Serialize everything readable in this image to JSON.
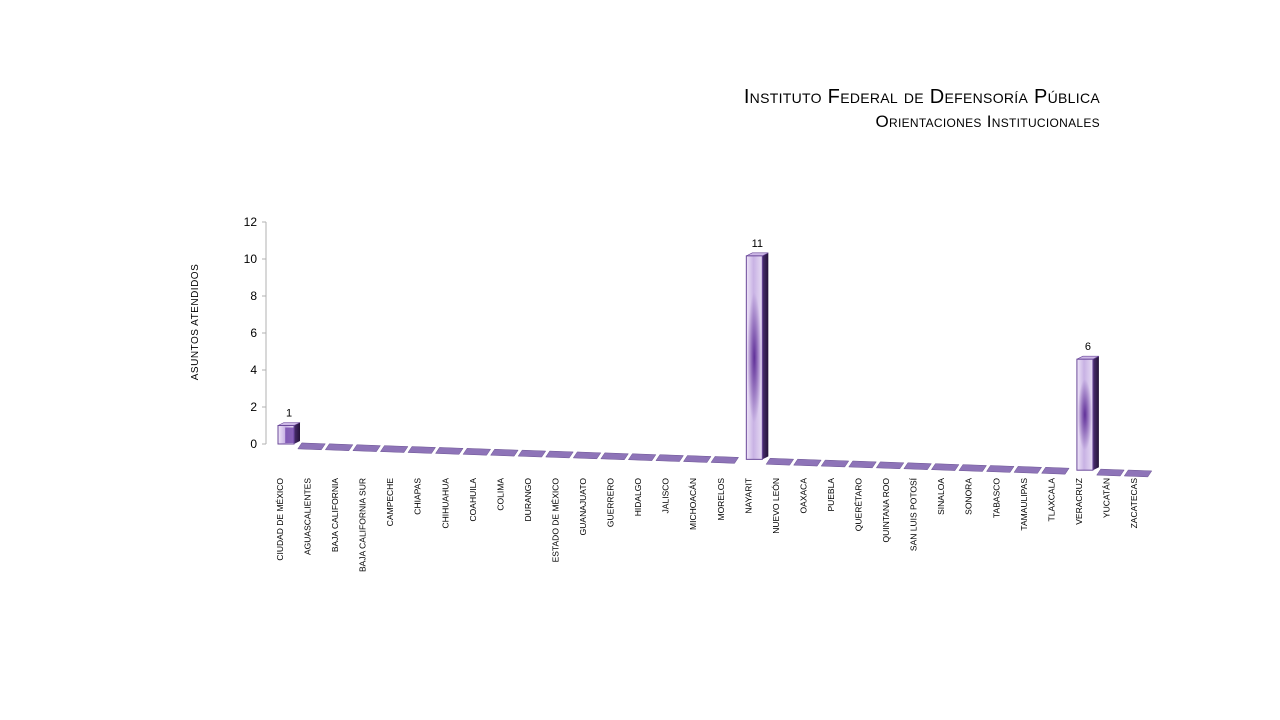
{
  "chart_data": {
    "type": "bar",
    "title": "Instituto Federal de Defensoría Pública",
    "subtitle": "Orientaciones Institucionales",
    "xlabel": "",
    "ylabel": "ASUNTOS ATENDIDOS",
    "ylim": [
      0,
      12
    ],
    "yticks": [
      "0",
      "2",
      "4",
      "6",
      "8",
      "10",
      "12"
    ],
    "grid": false,
    "categories": [
      "CIUDAD DE MÉXICO",
      "AGUASCALIENTES",
      "BAJA CALIFORNIA",
      "BAJA CALIFORNIA SUR",
      "CAMPECHE",
      "CHIAPAS",
      "CHIHUAHUA",
      "COAHUILA",
      "COLIMA",
      "DURANGO",
      "ESTADO DE MÉXICO",
      "GUANAJUATO",
      "GUERRERO",
      "HIDALGO",
      "JALISCO",
      "MICHOACÁN",
      "MORELOS",
      "NAYARIT",
      "NUEVO LEÓN",
      "OAXACA",
      "PUEBLA",
      "QUERÉTARO",
      "QUINTANA ROO",
      "SAN LUIS POTOSÍ",
      "SINALOA",
      "SONORA",
      "TABASCO",
      "TAMAULIPAS",
      "TLAXCALA",
      "VERACRUZ",
      "YUCATÁN",
      "ZACATECAS"
    ],
    "values": [
      1,
      0,
      0,
      0,
      0,
      0,
      0,
      0,
      0,
      0,
      0,
      0,
      0,
      0,
      0,
      0,
      0,
      11,
      0,
      0,
      0,
      0,
      0,
      0,
      0,
      0,
      0,
      0,
      0,
      6,
      0,
      0
    ],
    "data_labels": [
      "1",
      "",
      "",
      "",
      "",
      "",
      "",
      "",
      "",
      "",
      "",
      "",
      "",
      "",
      "",
      "",
      "",
      "11",
      "",
      "",
      "",
      "",
      "",
      "",
      "",
      "",
      "",
      "",
      "",
      "6",
      "",
      ""
    ],
    "colors": {
      "bar_light": "#d9c9ec",
      "bar_mid": "#7a4fb0",
      "bar_dark": "#3a1f5e",
      "bar_outline": "#6b4a9a",
      "floor": "#8e74b8"
    }
  }
}
